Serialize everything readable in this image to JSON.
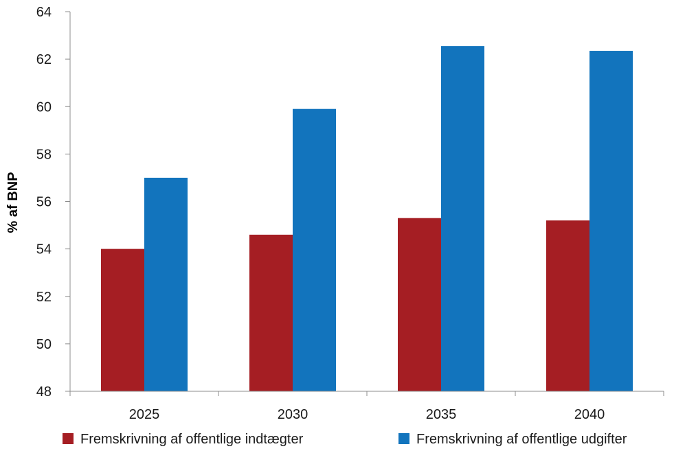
{
  "chart_data": {
    "type": "bar",
    "categories": [
      "2025",
      "2030",
      "2035",
      "2040"
    ],
    "series": [
      {
        "name": "Fremskrivning af offentlige indtægter",
        "color": "#A51E23",
        "values": [
          54.0,
          54.6,
          55.3,
          55.2
        ]
      },
      {
        "name": "Fremskrivning af offentlige udgifter",
        "color": "#1274BD",
        "values": [
          57.0,
          59.9,
          62.55,
          62.35
        ]
      }
    ],
    "ylabel": "% af BNP",
    "xlabel": "",
    "ylim": [
      48,
      64
    ],
    "yticks": [
      "48",
      "50",
      "52",
      "54",
      "56",
      "58",
      "60",
      "62",
      "64"
    ],
    "grid": false,
    "legend_position": "bottom"
  }
}
